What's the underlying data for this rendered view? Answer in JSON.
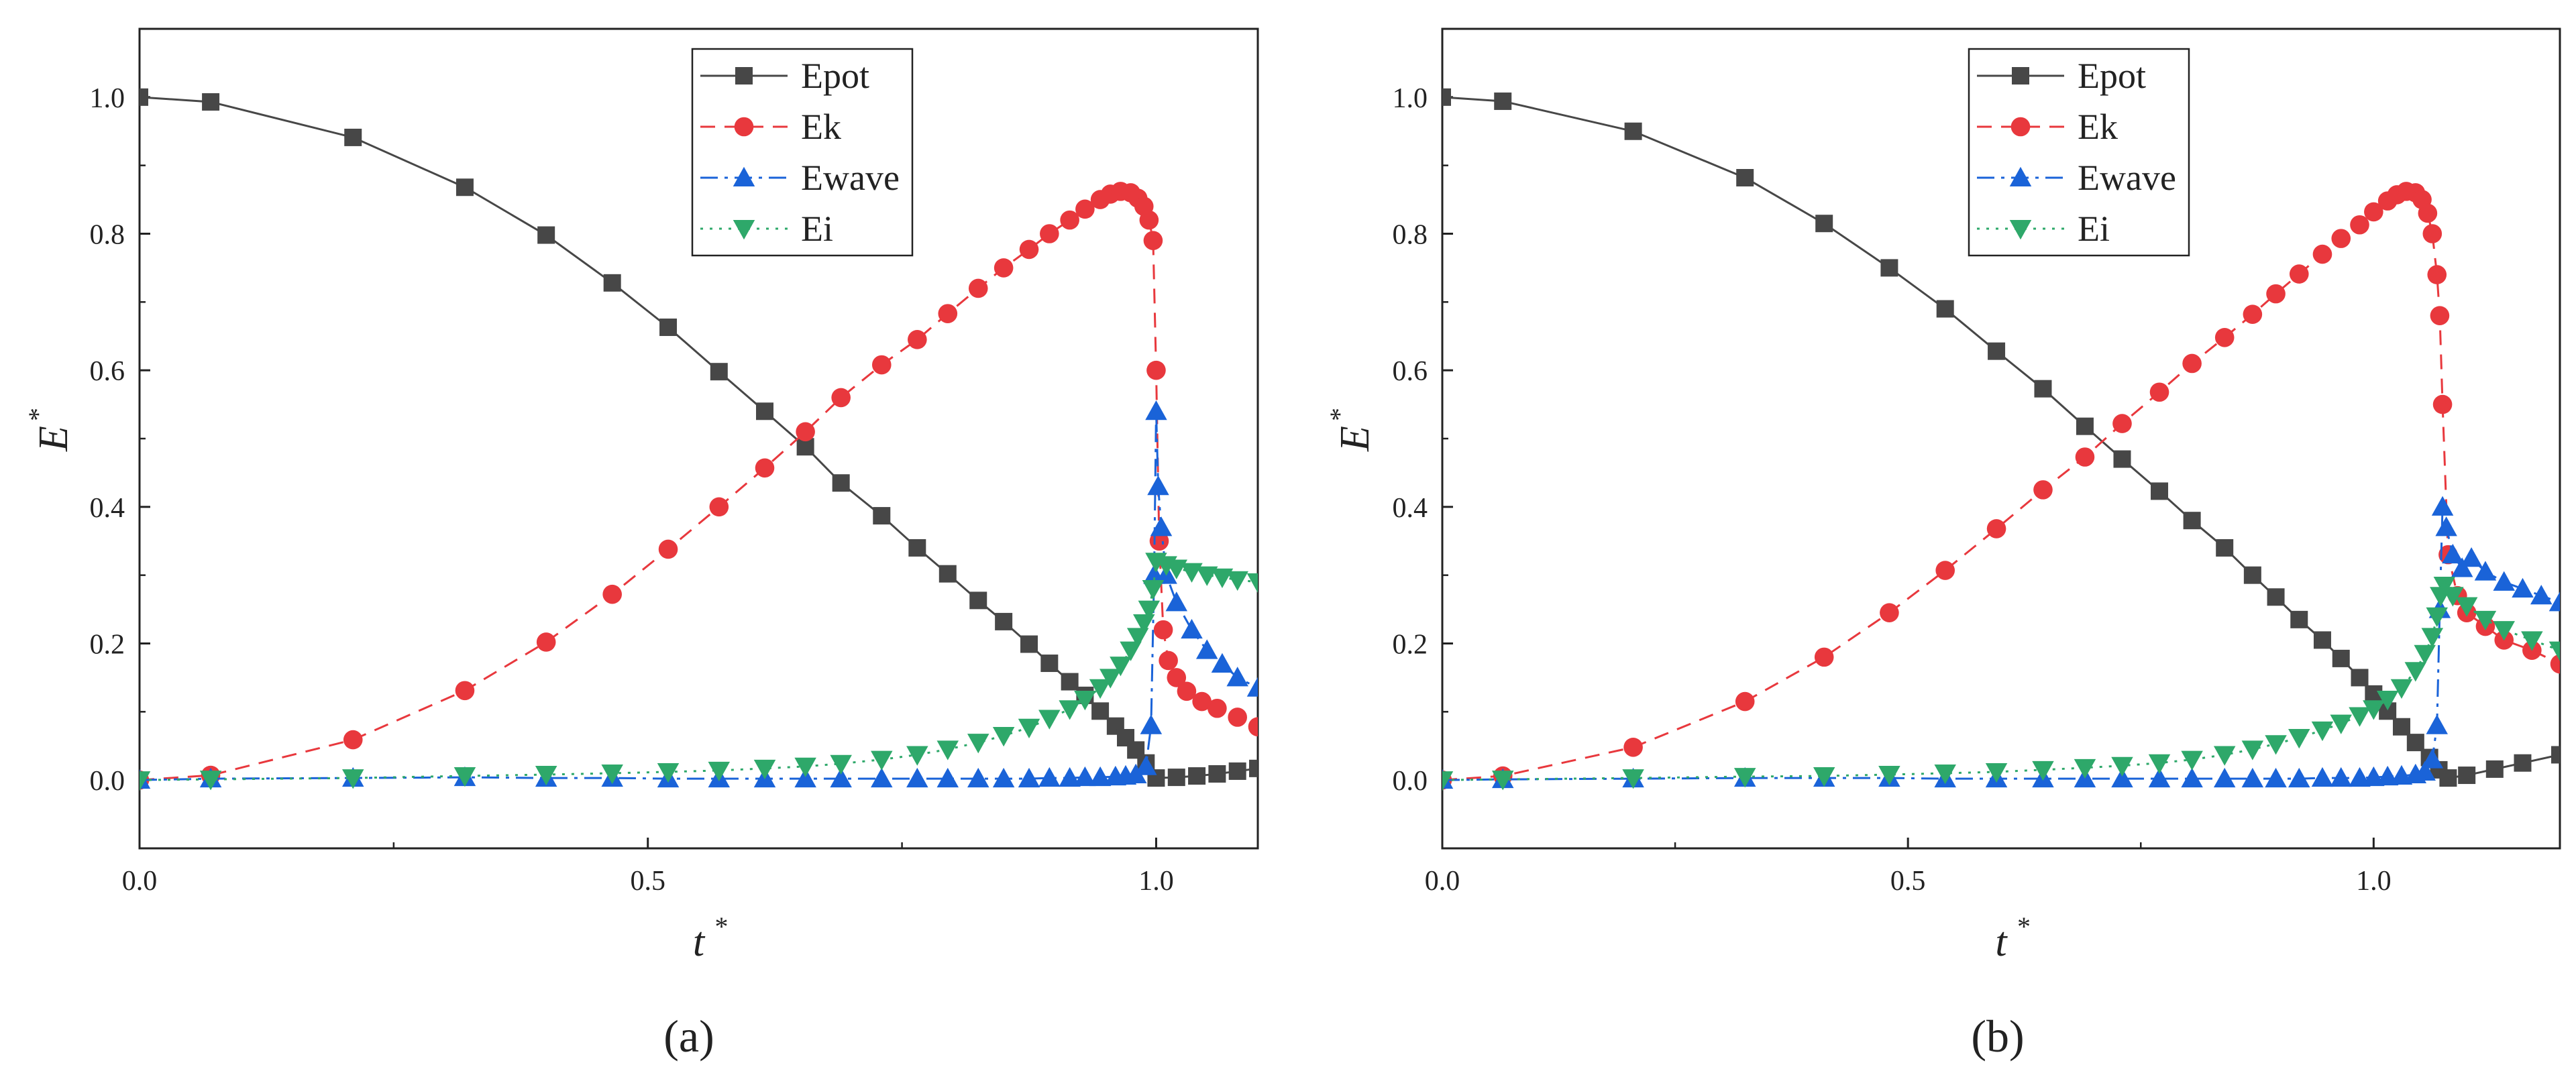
{
  "chart_data": [
    {
      "type": "line",
      "panel_label": "(a)",
      "xlabel": "t",
      "xlabel_sup": "*",
      "ylabel": "E",
      "ylabel_sup": "*",
      "xlim": [
        0,
        1.1
      ],
      "ylim": [
        -0.1,
        1.1
      ],
      "xticks": [
        0,
        0.5,
        1.0
      ],
      "xtick_labels": [
        "0.0",
        "0.5",
        "1.0"
      ],
      "yticks": [
        0,
        0.2,
        0.4,
        0.6,
        0.8,
        1.0
      ],
      "ytick_labels": [
        "0.0",
        "0.2",
        "0.4",
        "0.6",
        "0.8",
        "1.0"
      ],
      "legend_position": "top-center",
      "series": [
        {
          "name": "Epot",
          "color": "#474747",
          "dash": "solid",
          "marker": "square",
          "x": [
            0,
            0.07,
            0.21,
            0.32,
            0.4,
            0.465,
            0.52,
            0.57,
            0.615,
            0.655,
            0.69,
            0.73,
            0.765,
            0.795,
            0.825,
            0.85,
            0.875,
            0.895,
            0.915,
            0.93,
            0.945,
            0.96,
            0.97,
            0.98,
            0.99,
            1.0,
            1.02,
            1.04,
            1.06,
            1.08,
            1.1
          ],
          "y": [
            1.0,
            0.993,
            0.941,
            0.868,
            0.798,
            0.728,
            0.663,
            0.598,
            0.54,
            0.488,
            0.435,
            0.387,
            0.34,
            0.302,
            0.263,
            0.232,
            0.199,
            0.171,
            0.144,
            0.124,
            0.101,
            0.079,
            0.062,
            0.044,
            0.025,
            0.003,
            0.004,
            0.006,
            0.009,
            0.013,
            0.017
          ]
        },
        {
          "name": "Ek",
          "color": "#e8383d",
          "dash": "dashed",
          "marker": "circle",
          "x": [
            0,
            0.07,
            0.21,
            0.32,
            0.4,
            0.465,
            0.52,
            0.57,
            0.615,
            0.655,
            0.69,
            0.73,
            0.765,
            0.795,
            0.825,
            0.85,
            0.875,
            0.895,
            0.915,
            0.93,
            0.945,
            0.955,
            0.965,
            0.975,
            0.982,
            0.988,
            0.993,
            0.997,
            1.0,
            1.003,
            1.007,
            1.012,
            1.02,
            1.03,
            1.045,
            1.06,
            1.08,
            1.1
          ],
          "y": [
            0.0,
            0.007,
            0.059,
            0.131,
            0.202,
            0.272,
            0.338,
            0.4,
            0.457,
            0.51,
            0.56,
            0.608,
            0.645,
            0.683,
            0.72,
            0.75,
            0.777,
            0.8,
            0.82,
            0.836,
            0.85,
            0.858,
            0.862,
            0.86,
            0.852,
            0.84,
            0.82,
            0.79,
            0.6,
            0.35,
            0.22,
            0.175,
            0.15,
            0.13,
            0.115,
            0.105,
            0.092,
            0.078
          ]
        },
        {
          "name": "Ewave",
          "color": "#1a63d8",
          "dash": "dashdot",
          "marker": "triangle-up",
          "x": [
            0,
            0.07,
            0.21,
            0.32,
            0.4,
            0.465,
            0.52,
            0.57,
            0.615,
            0.655,
            0.69,
            0.73,
            0.765,
            0.795,
            0.825,
            0.85,
            0.875,
            0.895,
            0.915,
            0.93,
            0.945,
            0.96,
            0.97,
            0.98,
            0.99,
            0.995,
            0.998,
            1.0,
            1.002,
            1.005,
            1.01,
            1.02,
            1.035,
            1.05,
            1.065,
            1.08,
            1.1
          ],
          "y": [
            0.0,
            0.002,
            0.003,
            0.004,
            0.003,
            0.003,
            0.002,
            0.002,
            0.002,
            0.002,
            0.002,
            0.002,
            0.002,
            0.002,
            0.002,
            0.002,
            0.002,
            0.003,
            0.003,
            0.004,
            0.004,
            0.005,
            0.006,
            0.008,
            0.02,
            0.08,
            0.3,
            0.54,
            0.43,
            0.37,
            0.3,
            0.26,
            0.22,
            0.19,
            0.17,
            0.15,
            0.135
          ]
        },
        {
          "name": "Ei",
          "color": "#2ea86a",
          "dash": "dotted",
          "marker": "triangle-down",
          "x": [
            0,
            0.07,
            0.21,
            0.32,
            0.4,
            0.465,
            0.52,
            0.57,
            0.615,
            0.655,
            0.69,
            0.73,
            0.765,
            0.795,
            0.825,
            0.85,
            0.875,
            0.895,
            0.915,
            0.93,
            0.945,
            0.955,
            0.965,
            0.975,
            0.982,
            0.988,
            0.993,
            0.997,
            1.0,
            1.01,
            1.02,
            1.035,
            1.05,
            1.065,
            1.08,
            1.1
          ],
          "y": [
            0.0,
            0.001,
            0.003,
            0.006,
            0.008,
            0.01,
            0.012,
            0.014,
            0.017,
            0.02,
            0.024,
            0.03,
            0.037,
            0.045,
            0.055,
            0.065,
            0.077,
            0.09,
            0.104,
            0.118,
            0.135,
            0.15,
            0.168,
            0.19,
            0.21,
            0.23,
            0.25,
            0.28,
            0.32,
            0.315,
            0.31,
            0.305,
            0.3,
            0.297,
            0.293,
            0.29
          ]
        }
      ]
    },
    {
      "type": "line",
      "panel_label": "(b)",
      "xlabel": "t",
      "xlabel_sup": "*",
      "ylabel": "E",
      "ylabel_sup": "*",
      "xlim": [
        0,
        1.2
      ],
      "ylim": [
        -0.1,
        1.1
      ],
      "xticks": [
        0,
        0.5,
        1.0
      ],
      "xtick_labels": [
        "0.0",
        "0.5",
        "1.0"
      ],
      "yticks": [
        0,
        0.2,
        0.4,
        0.6,
        0.8,
        1.0
      ],
      "ytick_labels": [
        "0.0",
        "0.2",
        "0.4",
        "0.6",
        "0.8",
        "1.0"
      ],
      "legend_position": "top-center",
      "series": [
        {
          "name": "Epot",
          "color": "#474747",
          "dash": "solid",
          "marker": "square",
          "x": [
            0,
            0.065,
            0.205,
            0.325,
            0.41,
            0.48,
            0.54,
            0.595,
            0.645,
            0.69,
            0.73,
            0.77,
            0.805,
            0.84,
            0.87,
            0.895,
            0.92,
            0.945,
            0.965,
            0.985,
            1.0,
            1.015,
            1.03,
            1.045,
            1.06,
            1.07,
            1.08,
            1.1,
            1.13,
            1.16,
            1.2
          ],
          "y": [
            1.0,
            0.994,
            0.95,
            0.882,
            0.815,
            0.75,
            0.69,
            0.628,
            0.573,
            0.518,
            0.47,
            0.423,
            0.38,
            0.34,
            0.3,
            0.268,
            0.235,
            0.205,
            0.178,
            0.15,
            0.126,
            0.101,
            0.078,
            0.055,
            0.033,
            0.015,
            0.003,
            0.007,
            0.016,
            0.025,
            0.037
          ]
        },
        {
          "name": "Ek",
          "color": "#e8383d",
          "dash": "dashed",
          "marker": "circle",
          "x": [
            0,
            0.065,
            0.205,
            0.325,
            0.41,
            0.48,
            0.54,
            0.595,
            0.645,
            0.69,
            0.73,
            0.77,
            0.805,
            0.84,
            0.87,
            0.895,
            0.92,
            0.945,
            0.965,
            0.985,
            1.0,
            1.015,
            1.025,
            1.035,
            1.045,
            1.052,
            1.058,
            1.063,
            1.068,
            1.071,
            1.074,
            1.08,
            1.09,
            1.1,
            1.12,
            1.14,
            1.17,
            1.2
          ],
          "y": [
            0.0,
            0.006,
            0.048,
            0.115,
            0.18,
            0.245,
            0.307,
            0.368,
            0.425,
            0.473,
            0.522,
            0.568,
            0.61,
            0.648,
            0.682,
            0.712,
            0.741,
            0.77,
            0.793,
            0.813,
            0.832,
            0.848,
            0.857,
            0.862,
            0.86,
            0.85,
            0.83,
            0.8,
            0.74,
            0.68,
            0.55,
            0.33,
            0.27,
            0.245,
            0.225,
            0.205,
            0.19,
            0.17
          ]
        },
        {
          "name": "Ewave",
          "color": "#1a63d8",
          "dash": "dashdot",
          "marker": "triangle-up",
          "x": [
            0,
            0.065,
            0.205,
            0.325,
            0.41,
            0.48,
            0.54,
            0.595,
            0.645,
            0.69,
            0.73,
            0.77,
            0.805,
            0.84,
            0.87,
            0.895,
            0.92,
            0.945,
            0.965,
            0.985,
            1.0,
            1.015,
            1.03,
            1.045,
            1.055,
            1.063,
            1.068,
            1.071,
            1.074,
            1.078,
            1.085,
            1.095,
            1.105,
            1.12,
            1.14,
            1.16,
            1.18,
            1.2
          ],
          "y": [
            0.0,
            0.001,
            0.002,
            0.003,
            0.003,
            0.003,
            0.002,
            0.002,
            0.002,
            0.002,
            0.002,
            0.002,
            0.002,
            0.002,
            0.002,
            0.002,
            0.002,
            0.003,
            0.003,
            0.003,
            0.004,
            0.005,
            0.006,
            0.008,
            0.012,
            0.03,
            0.08,
            0.25,
            0.4,
            0.37,
            0.33,
            0.31,
            0.325,
            0.305,
            0.29,
            0.28,
            0.27,
            0.26
          ]
        },
        {
          "name": "Ei",
          "color": "#2ea86a",
          "dash": "dotted",
          "marker": "triangle-down",
          "x": [
            0,
            0.065,
            0.205,
            0.325,
            0.41,
            0.48,
            0.54,
            0.595,
            0.645,
            0.69,
            0.73,
            0.77,
            0.805,
            0.84,
            0.87,
            0.895,
            0.92,
            0.945,
            0.965,
            0.985,
            1.0,
            1.015,
            1.03,
            1.045,
            1.055,
            1.063,
            1.068,
            1.072,
            1.076,
            1.085,
            1.1,
            1.12,
            1.14,
            1.17,
            1.2
          ],
          "y": [
            0.0,
            0.001,
            0.003,
            0.005,
            0.006,
            0.008,
            0.01,
            0.012,
            0.015,
            0.018,
            0.021,
            0.025,
            0.03,
            0.037,
            0.045,
            0.053,
            0.062,
            0.073,
            0.083,
            0.094,
            0.104,
            0.118,
            0.135,
            0.16,
            0.185,
            0.21,
            0.24,
            0.27,
            0.285,
            0.27,
            0.255,
            0.235,
            0.22,
            0.205,
            0.19
          ]
        }
      ]
    }
  ]
}
